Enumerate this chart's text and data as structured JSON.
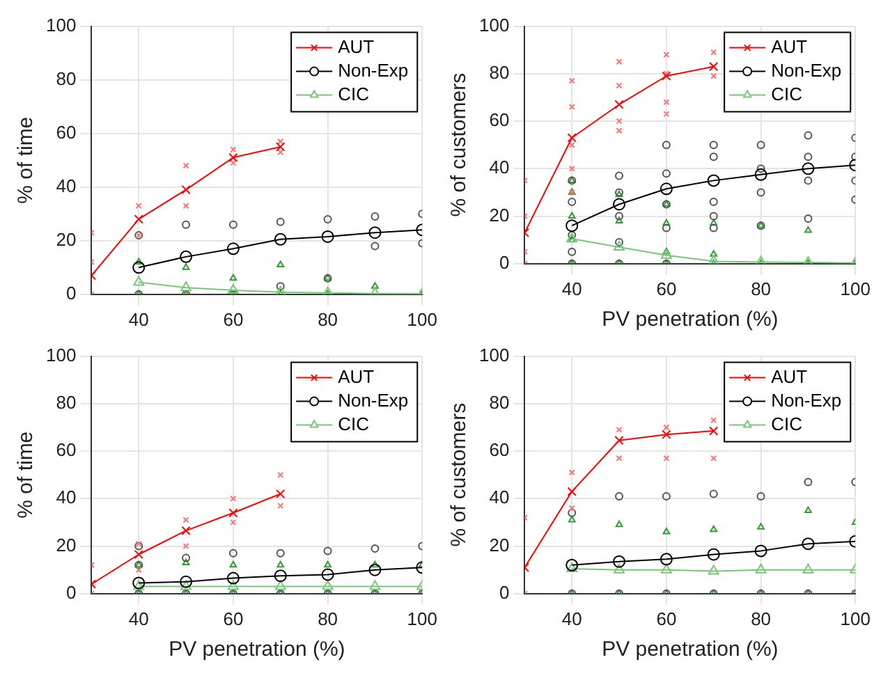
{
  "chart_data": [
    {
      "type": "line",
      "ylabel": "% of time",
      "xlim": [
        30,
        100
      ],
      "xticks": [
        40,
        60,
        80,
        100
      ],
      "ylim": [
        0,
        100
      ],
      "yticks": [
        0,
        20,
        40,
        60,
        80,
        100
      ],
      "grid": true,
      "legend": "top right",
      "series": [
        {
          "type": "scatter",
          "color": "#ff7070",
          "marker": "cross",
          "x": [
            30,
            30,
            30,
            40,
            40,
            50,
            50,
            60,
            60,
            70,
            70
          ],
          "values": [
            0,
            12,
            23,
            22,
            33,
            33,
            48,
            49,
            54,
            53,
            57
          ]
        },
        {
          "type": "scatter",
          "color": "#555555",
          "marker": "circle",
          "x": [
            40,
            40,
            50,
            50,
            60,
            60,
            70,
            70,
            80,
            80,
            90,
            90,
            100,
            100
          ],
          "values": [
            0,
            22,
            0,
            26,
            0,
            26,
            3,
            27,
            6,
            28,
            18,
            29,
            19,
            30
          ]
        },
        {
          "type": "scatter",
          "color": "#2ca02c",
          "marker": "triangle",
          "x": [
            40,
            40,
            50,
            50,
            60,
            60,
            70,
            70,
            80,
            80,
            90,
            100
          ],
          "values": [
            0,
            12,
            0,
            10,
            0,
            6,
            0,
            11,
            0,
            6,
            3,
            0
          ]
        },
        {
          "name": "AUT",
          "color": "#ff0000",
          "marker": "cross",
          "x": [
            30,
            40,
            50,
            60,
            70
          ],
          "values": [
            7,
            28,
            39,
            51,
            55
          ]
        },
        {
          "name": "Non-Exp",
          "color": "#000000",
          "marker": "circle",
          "x": [
            40,
            50,
            60,
            70,
            80,
            90,
            100
          ],
          "values": [
            10,
            14,
            17,
            20.5,
            21.5,
            23,
            24
          ]
        },
        {
          "name": "CIC",
          "color": "#77c777",
          "marker": "triangle",
          "x": [
            40,
            50,
            60,
            70,
            80,
            90,
            100
          ],
          "values": [
            4.5,
            2.5,
            1.5,
            0.8,
            0.5,
            0.3,
            0.2
          ]
        }
      ]
    },
    {
      "type": "line",
      "xlabel": "PV penetration (%)",
      "ylabel": "% of customers",
      "xlim": [
        30,
        100
      ],
      "xticks": [
        40,
        60,
        80,
        100
      ],
      "ylim": [
        0,
        100
      ],
      "yticks": [
        0,
        20,
        40,
        60,
        80,
        100
      ],
      "grid": true,
      "legend": "top right",
      "series": [
        {
          "type": "scatter",
          "color": "#ff7070",
          "marker": "cross",
          "x": [
            30,
            30,
            30,
            30,
            40,
            40,
            40,
            40,
            40,
            50,
            50,
            50,
            50,
            60,
            60,
            60,
            60,
            70,
            70
          ],
          "values": [
            0,
            5,
            20,
            35,
            30,
            40,
            50,
            66,
            77,
            56,
            60,
            75,
            85,
            63,
            68,
            80,
            88,
            79,
            89
          ]
        },
        {
          "type": "scatter",
          "color": "#555555",
          "marker": "circle",
          "x": [
            40,
            40,
            40,
            40,
            40,
            50,
            50,
            50,
            50,
            50,
            60,
            60,
            60,
            60,
            60,
            70,
            70,
            70,
            70,
            70,
            80,
            80,
            80,
            80,
            90,
            90,
            90,
            90,
            100,
            100,
            100,
            100
          ],
          "values": [
            0,
            5,
            12,
            26,
            35,
            0,
            9,
            20,
            30,
            37,
            0,
            15,
            25,
            38,
            50,
            15,
            20,
            26,
            45,
            50,
            16,
            30,
            40,
            50,
            19,
            35,
            45,
            54,
            27,
            35,
            45,
            53
          ]
        },
        {
          "type": "scatter",
          "color": "#2ca02c",
          "marker": "triangle",
          "x": [
            40,
            40,
            40,
            40,
            40,
            50,
            50,
            50,
            60,
            60,
            60,
            60,
            70,
            70,
            70,
            80,
            80,
            90,
            90,
            100
          ],
          "values": [
            0,
            10,
            20,
            30,
            35,
            0,
            18,
            29,
            0,
            5,
            17,
            25,
            0,
            4,
            17,
            0,
            16,
            0,
            14,
            0
          ]
        },
        {
          "name": "AUT",
          "color": "#ff0000",
          "marker": "cross",
          "x": [
            30,
            40,
            50,
            60,
            70
          ],
          "values": [
            13,
            53,
            67,
            79,
            83
          ]
        },
        {
          "name": "Non-Exp",
          "color": "#000000",
          "marker": "circle",
          "x": [
            40,
            50,
            60,
            70,
            80,
            90,
            100
          ],
          "values": [
            16,
            25,
            31.5,
            35,
            37.5,
            40,
            41.5
          ]
        },
        {
          "name": "CIC",
          "color": "#77c777",
          "marker": "triangle",
          "x": [
            40,
            50,
            60,
            70,
            80,
            90,
            100
          ],
          "values": [
            10.5,
            7,
            3.5,
            1,
            0.7,
            0.5,
            0.3
          ]
        }
      ]
    },
    {
      "type": "line",
      "xlabel": "PV penetration (%)",
      "ylabel": "% of time",
      "xlim": [
        30,
        100
      ],
      "xticks": [
        40,
        60,
        80,
        100
      ],
      "ylim": [
        0,
        100
      ],
      "yticks": [
        0,
        20,
        40,
        60,
        80,
        100
      ],
      "grid": true,
      "legend": "top right",
      "series": [
        {
          "type": "scatter",
          "color": "#ff7070",
          "marker": "cross",
          "x": [
            30,
            30,
            40,
            40,
            50,
            50,
            60,
            60,
            70,
            70
          ],
          "values": [
            0,
            12,
            10,
            21,
            20,
            31,
            30,
            40,
            37,
            50
          ]
        },
        {
          "type": "scatter",
          "color": "#555555",
          "marker": "circle",
          "x": [
            40,
            40,
            40,
            50,
            50,
            60,
            60,
            70,
            70,
            80,
            80,
            90,
            90,
            100,
            100
          ],
          "values": [
            0,
            12,
            20,
            0,
            15,
            0,
            17,
            0,
            17,
            0,
            18,
            0,
            19,
            0,
            20
          ]
        },
        {
          "type": "scatter",
          "color": "#2ca02c",
          "marker": "triangle",
          "x": [
            40,
            40,
            50,
            50,
            60,
            60,
            70,
            70,
            80,
            80,
            90,
            90,
            100,
            100
          ],
          "values": [
            0,
            12,
            0,
            13,
            0,
            12,
            0,
            12,
            0,
            12,
            0,
            12,
            0,
            12
          ]
        },
        {
          "name": "AUT",
          "color": "#ff0000",
          "marker": "cross",
          "x": [
            30,
            40,
            50,
            60,
            70
          ],
          "values": [
            4,
            16.5,
            26.5,
            34,
            42
          ]
        },
        {
          "name": "Non-Exp",
          "color": "#000000",
          "marker": "circle",
          "x": [
            40,
            50,
            60,
            70,
            80,
            90,
            100
          ],
          "values": [
            4.5,
            5,
            6.5,
            7.5,
            8,
            10,
            11
          ]
        },
        {
          "name": "CIC",
          "color": "#77c777",
          "marker": "triangle",
          "x": [
            40,
            50,
            60,
            70,
            80,
            90,
            100
          ],
          "values": [
            3,
            3,
            3,
            3,
            3,
            3,
            3
          ]
        }
      ]
    },
    {
      "type": "line",
      "xlabel": "PV penetration (%)",
      "ylabel": "% of customers",
      "xlim": [
        30,
        100
      ],
      "xticks": [
        40,
        60,
        80,
        100
      ],
      "ylim": [
        0,
        100
      ],
      "yticks": [
        0,
        20,
        40,
        60,
        80,
        100
      ],
      "grid": true,
      "legend": "top right",
      "series": [
        {
          "type": "scatter",
          "color": "#ff7070",
          "marker": "cross",
          "x": [
            30,
            30,
            40,
            40,
            50,
            50,
            60,
            60,
            70,
            70
          ],
          "values": [
            0,
            32,
            36,
            51,
            57,
            69,
            57,
            70,
            57,
            73
          ]
        },
        {
          "type": "scatter",
          "color": "#555555",
          "marker": "circle",
          "x": [
            40,
            40,
            50,
            50,
            60,
            60,
            70,
            70,
            80,
            80,
            90,
            90,
            100,
            100
          ],
          "values": [
            0,
            34,
            0,
            41,
            0,
            41,
            0,
            42,
            0,
            41,
            0,
            47,
            0,
            47
          ]
        },
        {
          "type": "scatter",
          "color": "#2ca02c",
          "marker": "triangle",
          "x": [
            40,
            40,
            50,
            50,
            60,
            60,
            70,
            70,
            80,
            80,
            90,
            90,
            100,
            100
          ],
          "values": [
            0,
            31,
            0,
            29,
            0,
            26,
            0,
            27,
            0,
            28,
            0,
            35,
            0,
            30
          ]
        },
        {
          "name": "AUT",
          "color": "#ff0000",
          "marker": "cross",
          "x": [
            30,
            40,
            50,
            60,
            70
          ],
          "values": [
            11,
            43,
            64.5,
            67,
            68.5
          ]
        },
        {
          "name": "Non-Exp",
          "color": "#000000",
          "marker": "circle",
          "x": [
            40,
            50,
            60,
            70,
            80,
            90,
            100
          ],
          "values": [
            12,
            13.5,
            14.5,
            16.5,
            18,
            21,
            22
          ]
        },
        {
          "name": "CIC",
          "color": "#77c777",
          "marker": "triangle",
          "x": [
            40,
            50,
            60,
            70,
            80,
            90,
            100
          ],
          "values": [
            10.5,
            10,
            10,
            9.5,
            10,
            10,
            10
          ]
        }
      ]
    }
  ]
}
